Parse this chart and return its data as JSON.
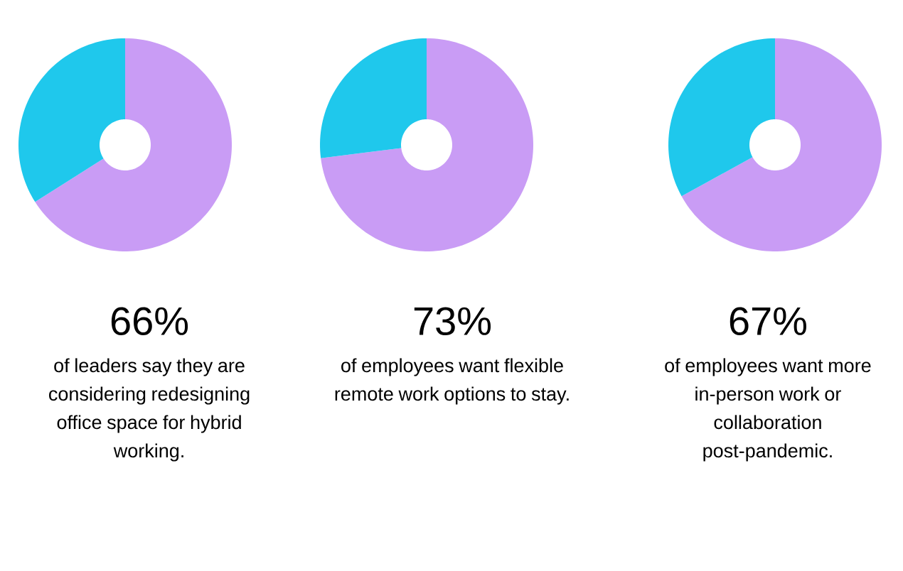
{
  "chart_data": [
    {
      "type": "donut",
      "title": "66%",
      "subtitle": "of leaders say they are considering redesigning office space for hybrid working.",
      "categories": [
        null,
        null
      ],
      "values": [
        66,
        34
      ],
      "colors": [
        "#c99cf5",
        "#1fc8ec"
      ]
    },
    {
      "type": "donut",
      "title": "73%",
      "subtitle": "of employees want flexible remote work options to stay.",
      "categories": [
        null,
        null
      ],
      "values": [
        73,
        27
      ],
      "colors": [
        "#c99cf5",
        "#1fc8ec"
      ]
    },
    {
      "type": "donut",
      "title": "67%",
      "subtitle": "of employees want more in-person work or collaboration post-pandemic.",
      "categories": [
        null,
        null
      ],
      "values": [
        67,
        33
      ],
      "colors": [
        "#c99cf5",
        "#1fc8ec"
      ]
    }
  ]
}
